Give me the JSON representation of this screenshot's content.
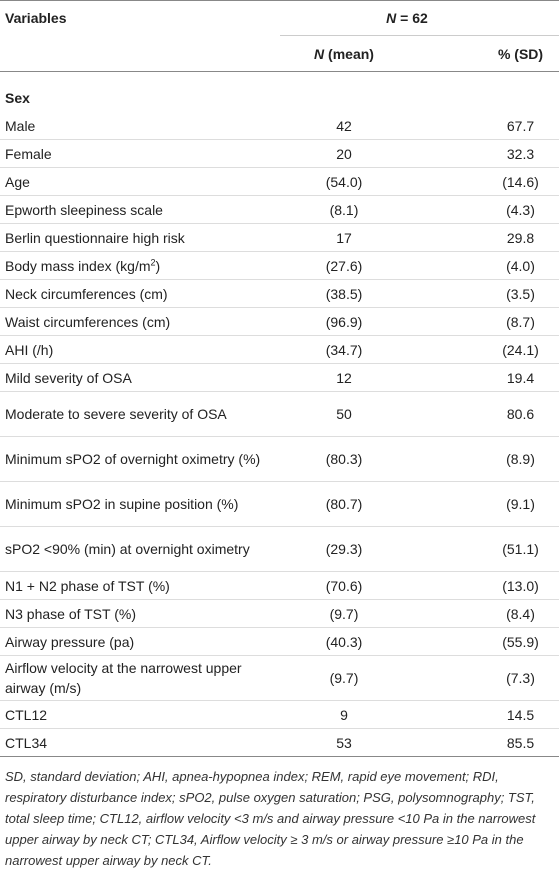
{
  "header": {
    "variables": "Variables",
    "n_total": {
      "italic": "N",
      "rest": " = 62"
    },
    "n_col": {
      "italic": "N",
      "rest": " (mean)"
    },
    "pct_col": "% (SD)"
  },
  "table": {
    "rows": [
      {
        "label": "Sex",
        "section": true
      },
      {
        "label": "Male",
        "n": "42",
        "pct": "67.7"
      },
      {
        "label": "Female",
        "n": "20",
        "pct": "32.3"
      },
      {
        "label": "Age",
        "n": "(54.0)",
        "pct": "(14.6)"
      },
      {
        "label": "Epworth sleepiness scale",
        "n": "(8.1)",
        "pct": "(4.3)"
      },
      {
        "label": "Berlin questionnaire high risk",
        "n": "17",
        "pct": "29.8"
      },
      {
        "label": "Body mass index (kg/m",
        "sup": "2",
        "label_end": ")",
        "n": "(27.6)",
        "pct": "(4.0)"
      },
      {
        "label": "Neck circumferences (cm)",
        "n": "(38.5)",
        "pct": "(3.5)"
      },
      {
        "label": "Waist circumferences (cm)",
        "n": "(96.9)",
        "pct": "(8.7)"
      },
      {
        "label": "AHI (/h)",
        "n": "(34.7)",
        "pct": "(24.1)"
      },
      {
        "label": "Mild severity of OSA",
        "n": "12",
        "pct": "19.4"
      },
      {
        "label": "Moderate to severe severity of OSA",
        "n": "50",
        "pct": "80.6"
      },
      {
        "label": "Minimum sPO2 of overnight oximetry (%)",
        "n": "(80.3)",
        "pct": "(8.9)"
      },
      {
        "label": "Minimum sPO2 in supine position (%)",
        "n": "(80.7)",
        "pct": "(9.1)"
      },
      {
        "label": "sPO2 <90% (min) at overnight oximetry",
        "n": "(29.3)",
        "pct": "(51.1)"
      },
      {
        "label": "N1 + N2 phase of TST (%)",
        "n": "(70.6)",
        "pct": "(13.0)"
      },
      {
        "label": "N3 phase of TST (%)",
        "n": "(9.7)",
        "pct": "(8.4)"
      },
      {
        "label": "Airway pressure (pa)",
        "n": "(40.3)",
        "pct": "(55.9)"
      },
      {
        "label": "Airflow velocity at the narrowest upper airway (m/s)",
        "n": "(9.7)",
        "pct": "(7.3)"
      },
      {
        "label": "CTL12",
        "n": "9",
        "pct": "14.5"
      },
      {
        "label": "CTL34",
        "n": "53",
        "pct": "85.5"
      }
    ]
  },
  "footnote": "SD, standard deviation; AHI, apnea-hypopnea index; REM, rapid eye movement; RDI, respiratory disturbance index; sPO2, pulse oxygen saturation; PSG, polysomnography; TST, total sleep time; CTL12, airflow velocity <3 m/s and airway pressure <10 Pa in the narrowest upper airway by neck CT; CTL34, Airflow velocity ≥ 3 m/s or airway pressure ≥10 Pa in the narrowest upper airway by neck CT."
}
